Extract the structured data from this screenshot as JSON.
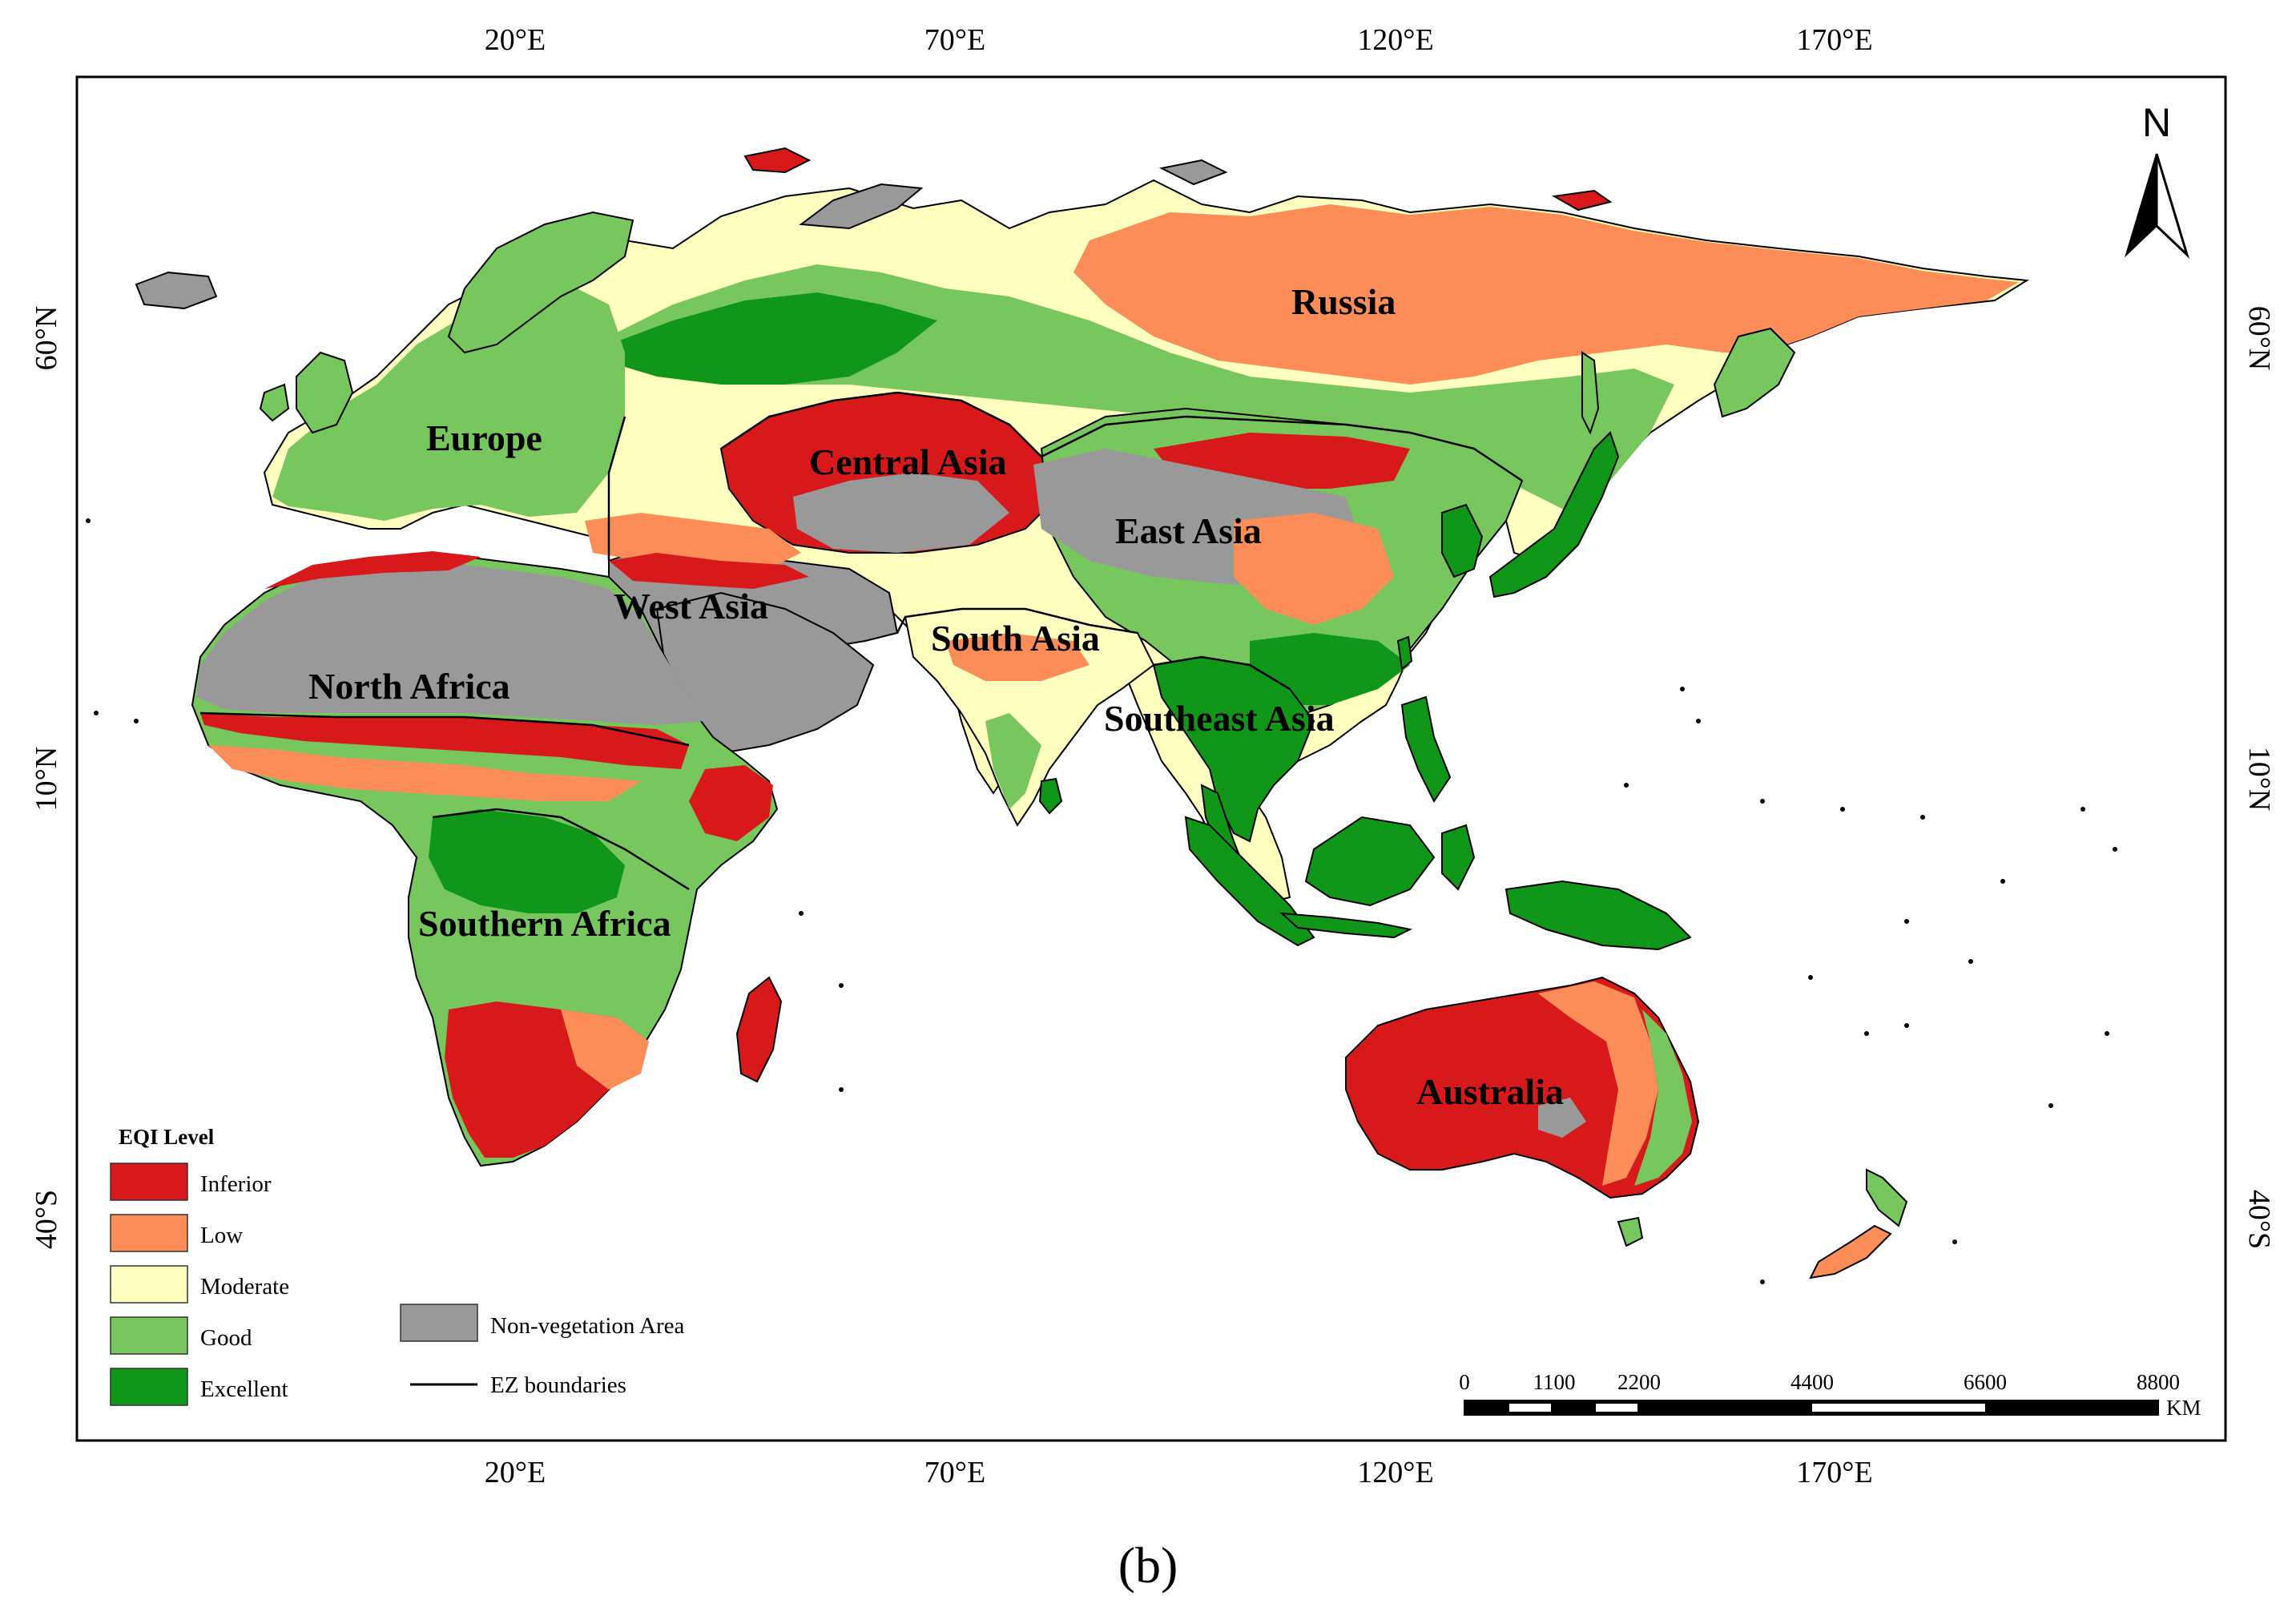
{
  "figure": {
    "caption": "(b)"
  },
  "colors": {
    "inferior": "#d7191c",
    "low": "#fc8d59",
    "moderate": "#ffffbf",
    "good": "#78c75e",
    "excellent": "#109618",
    "non_vegetation": "#999999",
    "ocean": "#ffffff"
  },
  "axes": {
    "longitude_labels": [
      "20°E",
      "70°E",
      "120°E",
      "170°E"
    ],
    "latitude_labels": [
      "60°N",
      "10°N",
      "40°S"
    ]
  },
  "north_arrow": {
    "label": "N",
    "icon": "north-arrow-icon"
  },
  "regions": {
    "russia": "Russia",
    "europe": "Europe",
    "central_asia": "Central Asia",
    "east_asia": "East Asia",
    "west_asia": "West Asia",
    "south_asia": "South Asia",
    "north_africa": "North Africa",
    "southeast_asia": "Southeast Asia",
    "southern_africa": "Southern Africa",
    "australia": "Australia"
  },
  "legend": {
    "title": "EQI  Level",
    "levels": [
      {
        "label": "Inferior",
        "color": "#d7191c"
      },
      {
        "label": "Low",
        "color": "#fc8d59"
      },
      {
        "label": "Moderate",
        "color": "#ffffbf"
      },
      {
        "label": "Good",
        "color": "#78c75e"
      },
      {
        "label": "Excellent",
        "color": "#109618"
      }
    ],
    "non_vegetation": {
      "label": "Non-vegetation Area",
      "color": "#999999"
    },
    "boundaries": {
      "label": "EZ boundaries"
    }
  },
  "scale_bar": {
    "ticks": [
      "0",
      "1100",
      "2200",
      "4400",
      "6600",
      "8800"
    ],
    "unit": "KM"
  }
}
